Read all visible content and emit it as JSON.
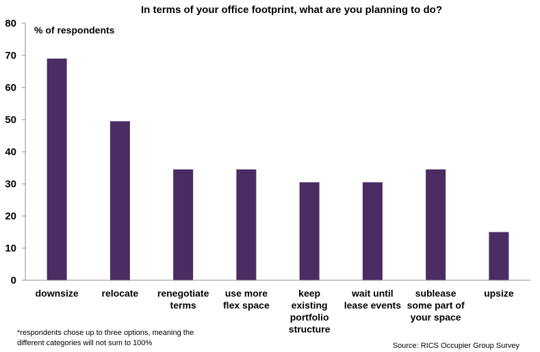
{
  "chart_data": {
    "type": "bar",
    "title": "In terms of your office footprint, what are you planning to do?",
    "ylabel": "% of respondents",
    "xlabel": "",
    "ylim": [
      0,
      80
    ],
    "yticks": [
      0,
      10,
      20,
      30,
      40,
      50,
      60,
      70,
      80
    ],
    "grid": false,
    "legend": "none",
    "bar_color": "#4B2C63",
    "categories": [
      [
        "downsize"
      ],
      [
        "relocate"
      ],
      [
        "renegotiate",
        "terms"
      ],
      [
        "use more",
        "flex space"
      ],
      [
        "keep",
        "existing",
        "portfolio",
        "structure"
      ],
      [
        "wait until",
        "lease events"
      ],
      [
        "sublease",
        "some part of",
        "your space"
      ],
      [
        "upsize"
      ]
    ],
    "values": [
      69,
      49.5,
      34.5,
      34.5,
      30.5,
      30.5,
      34.5,
      15
    ]
  },
  "footnote": [
    "*respondents  chose up to three options, meaning the",
    "different categories will not sum to 100%"
  ],
  "source": "Source: RICS Occupier Group Survey"
}
